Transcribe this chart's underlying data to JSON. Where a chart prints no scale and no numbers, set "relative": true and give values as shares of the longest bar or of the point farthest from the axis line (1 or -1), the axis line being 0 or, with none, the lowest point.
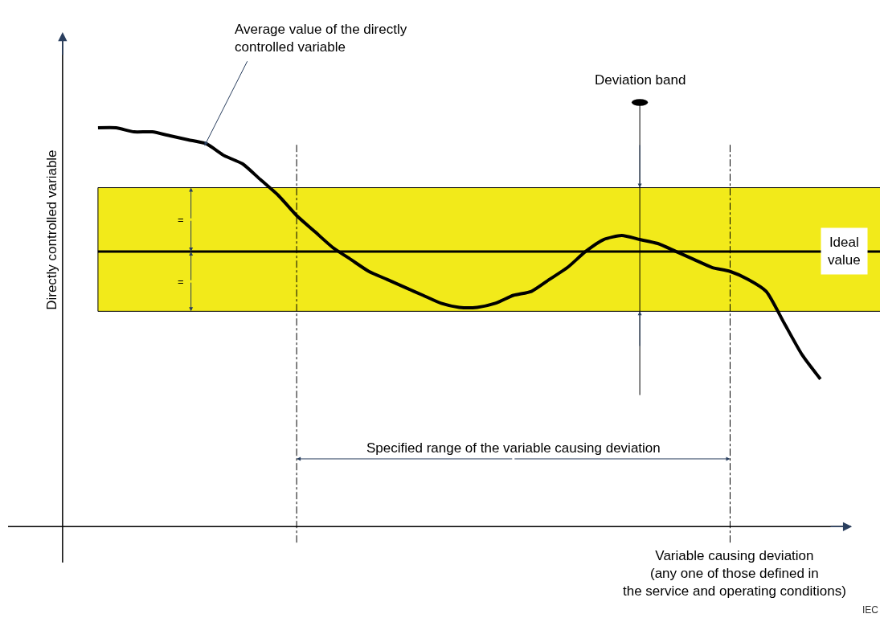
{
  "chart_data": {
    "type": "line",
    "relative": true,
    "ylabel": "Directly controlled variable",
    "xlabel": "Variable causing deviation\n(any one of those defined in\nthe service and operating conditions)",
    "categories": [
      null,
      null,
      null,
      null,
      null,
      null,
      null,
      null,
      null,
      null,
      null,
      null,
      null,
      null,
      null,
      null,
      null,
      null,
      null,
      null,
      null,
      null,
      null,
      null,
      null,
      null,
      null,
      null,
      null,
      null,
      null,
      null,
      null,
      null,
      null,
      null,
      null,
      null,
      null,
      null,
      null
    ],
    "series": [
      {
        "color": "#000000",
        "values": [
          1.0,
          1.0,
          0.99,
          0.99,
          0.98,
          0.97,
          0.96,
          0.93,
          0.91,
          0.87,
          0.83,
          0.78,
          0.74,
          0.7,
          0.67,
          0.64,
          0.62,
          0.6,
          0.58,
          0.56,
          0.55,
          0.55,
          0.56,
          0.58,
          0.59,
          0.62,
          0.65,
          0.69,
          0.72,
          0.73,
          0.72,
          0.71,
          0.69,
          0.67,
          0.65,
          0.64,
          0.62,
          0.59,
          0.51,
          0.43,
          0.37
        ]
      }
    ],
    "bands": [
      {
        "axis": "y",
        "from": 0.54,
        "to": 0.85,
        "color": "#f2ea1a"
      }
    ],
    "ref_lines": [
      {
        "axis": "y",
        "value": 0.69,
        "label": "Ideal\nvalue",
        "color": "#000000"
      }
    ],
    "annotations": [
      "Average value of the directly\ncontrolled variable",
      "Specified range of the variable causing deviation",
      "=",
      "=",
      "IEC",
      "Deviation band"
    ]
  }
}
